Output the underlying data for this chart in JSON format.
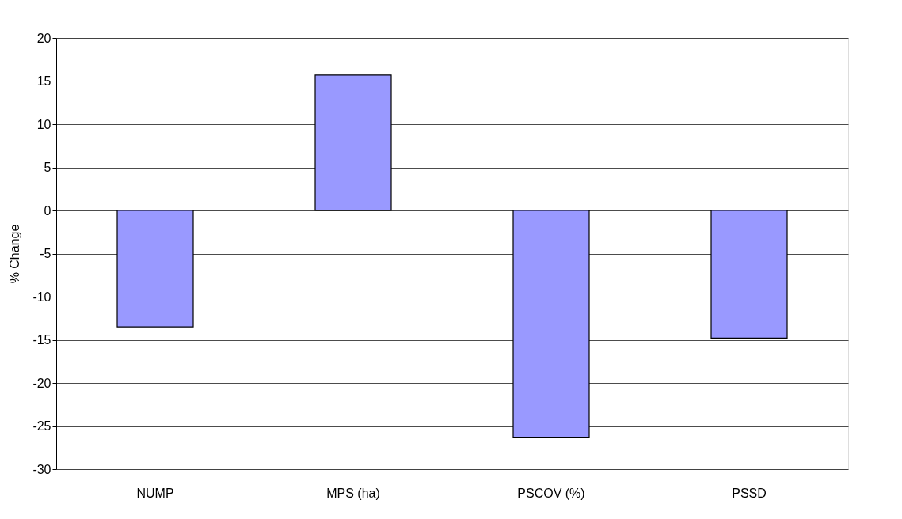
{
  "chart_data": {
    "type": "bar",
    "ylabel": "% Change",
    "categories": [
      "NUMP",
      "MPS (ha)",
      "PSCOV (%)",
      "PSSD"
    ],
    "values": [
      -13.5,
      15.7,
      -26.3,
      -14.8
    ],
    "color": "#9999ff",
    "ylim": [
      -30,
      20
    ],
    "yticks": [
      -30,
      -25,
      -20,
      -15,
      -10,
      -5,
      0,
      5,
      10,
      15,
      20
    ],
    "grid": "y"
  }
}
